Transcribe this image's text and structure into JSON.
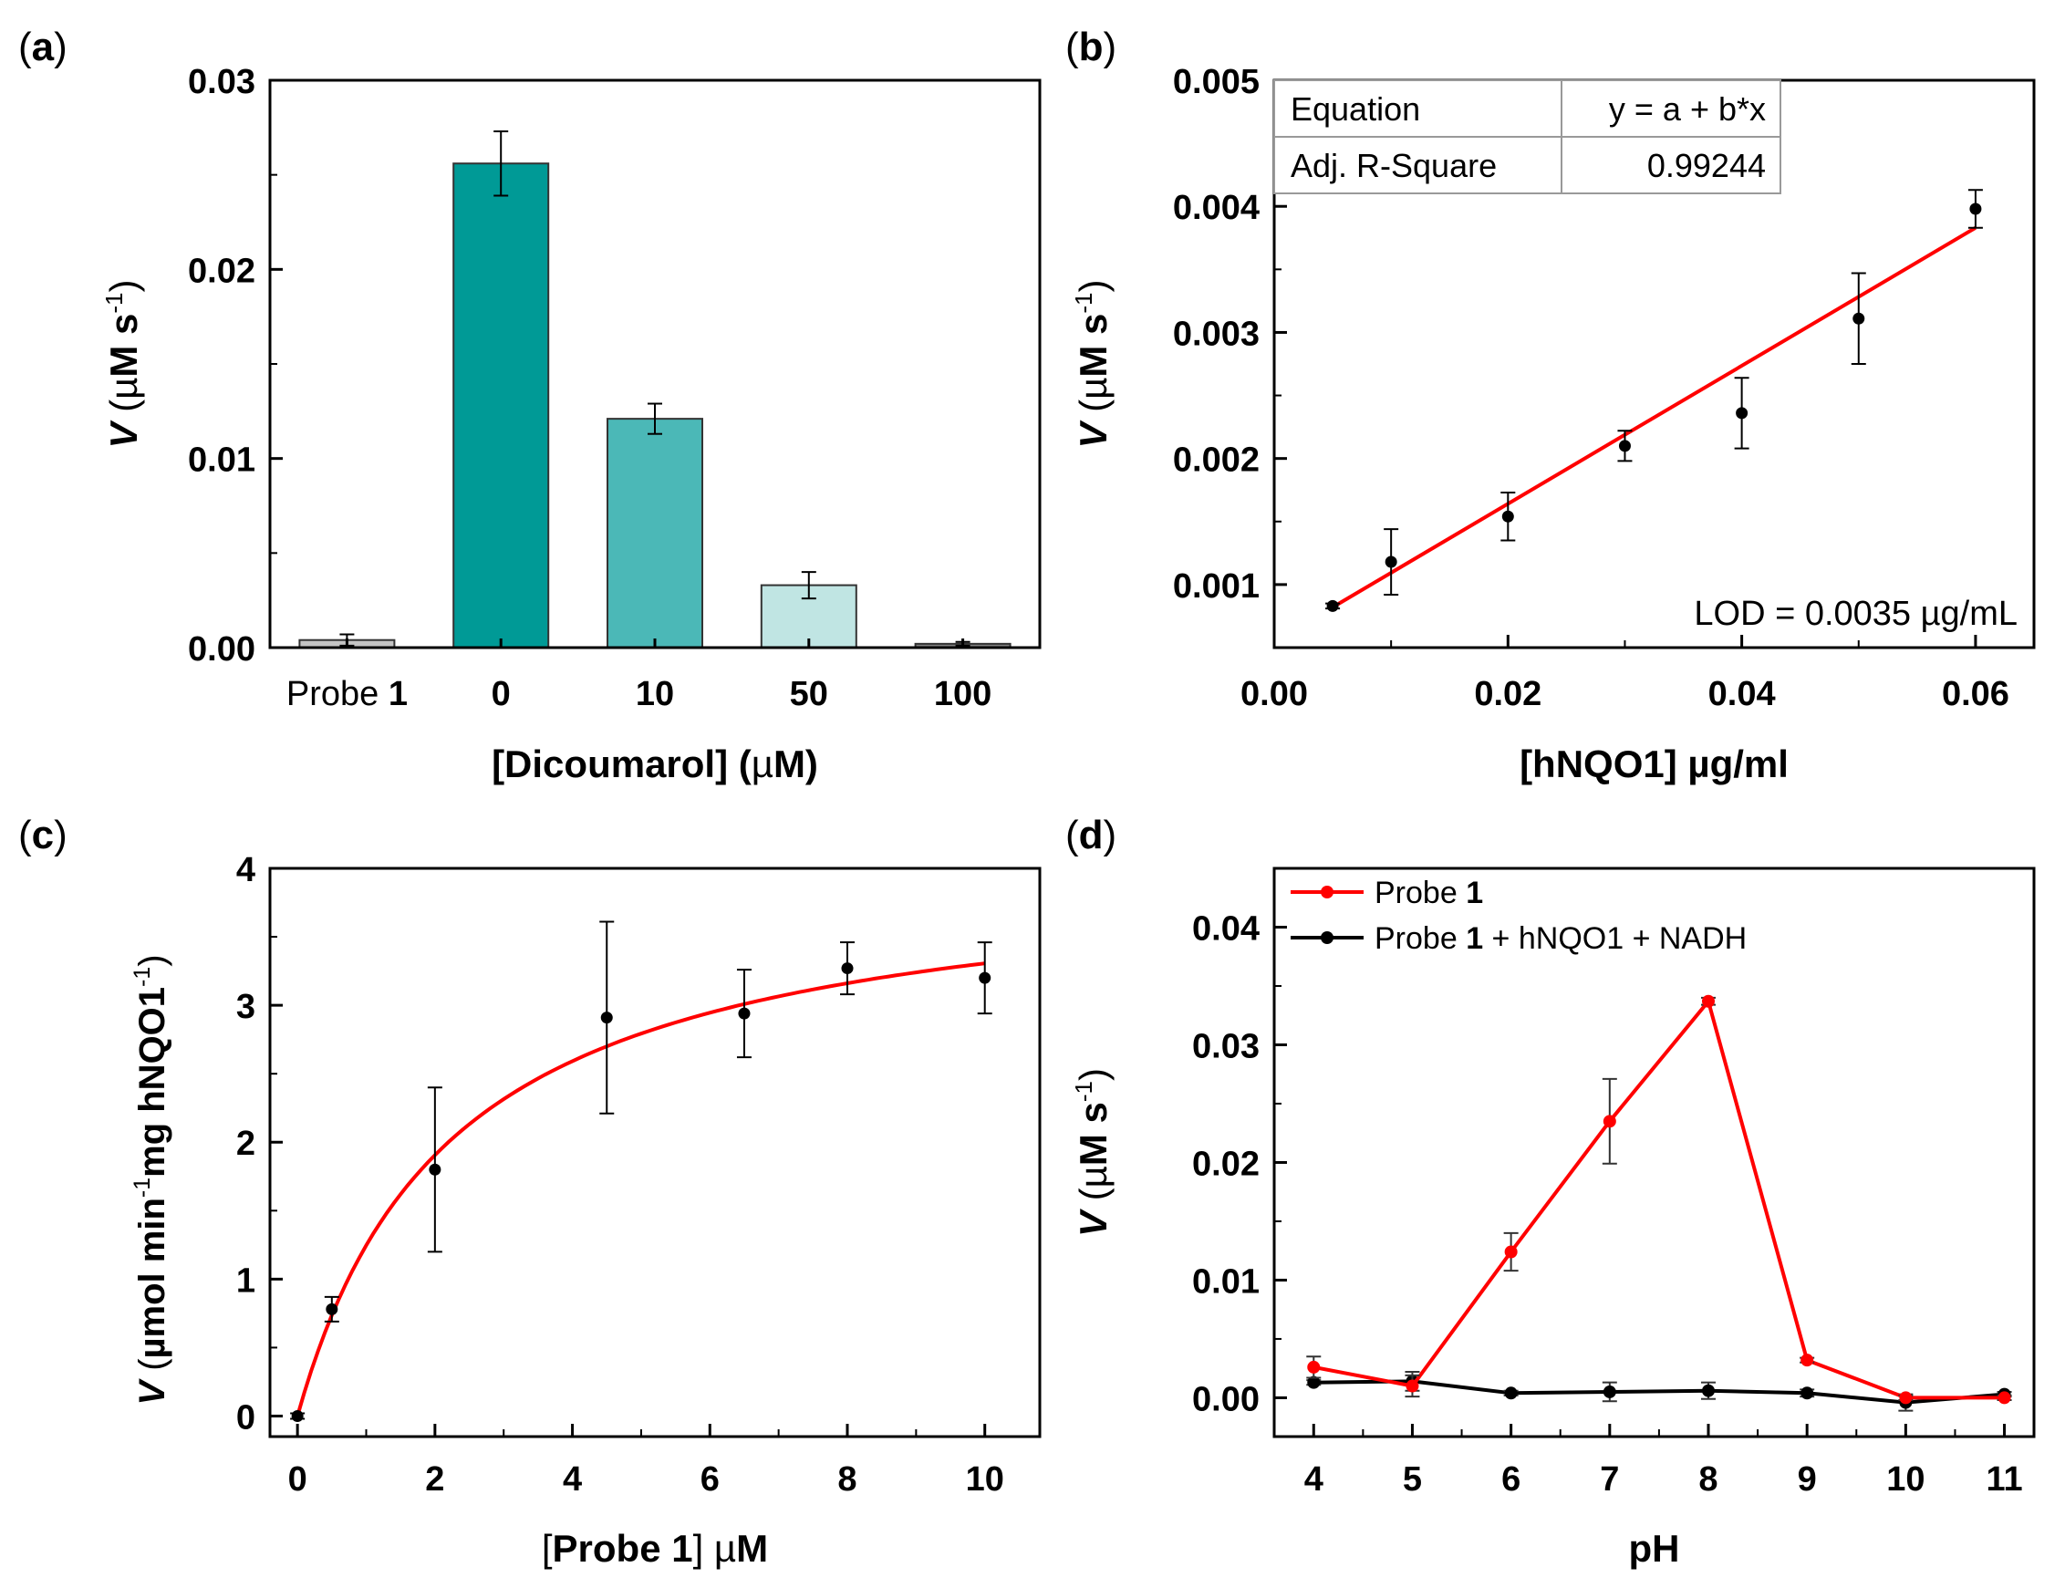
{
  "chart_data": [
    {
      "panel_label": "(a)",
      "type": "bar",
      "categories": [
        "Probe 1",
        "0",
        "10",
        "50",
        "100"
      ],
      "values": [
        0.0004,
        0.0256,
        0.0121,
        0.0033,
        0.0002
      ],
      "errors": [
        0.0003,
        0.0017,
        0.0008,
        0.0007,
        0.0001
      ],
      "bar_colors": [
        "#c4c4c4",
        "#009a96",
        "#4bb8b7",
        "#c0e5e3",
        "#7f7f7f"
      ],
      "xlabel": "[Dicoumarol] (µM)",
      "ylabel": "V (µM s-1)",
      "ylim": [
        0,
        0.03
      ],
      "yticks": [
        "0.00",
        "0.01",
        "0.02",
        "0.03"
      ]
    },
    {
      "panel_label": "(b)",
      "type": "scatter",
      "x": [
        0.005,
        0.01,
        0.02,
        0.03,
        0.04,
        0.05,
        0.06
      ],
      "y": [
        0.00083,
        0.00118,
        0.00154,
        0.0021,
        0.00236,
        0.00311,
        0.00398
      ],
      "errors": [
        2e-05,
        0.00026,
        0.00019,
        0.00012,
        0.00028,
        0.00036,
        0.00015
      ],
      "fit_line": {
        "x": [
          0.005,
          0.06
        ],
        "y": [
          0.00082,
          0.00383
        ],
        "color": "#ff0000"
      },
      "xlabel": "[hNQO1] µg/ml",
      "ylabel": "V (µM s-1)",
      "xlim": [
        0,
        0.065
      ],
      "ylim": [
        0.0005,
        0.005
      ],
      "xticks": [
        "0.00",
        "0.02",
        "0.04",
        "0.06"
      ],
      "yticks": [
        "0.001",
        "0.002",
        "0.003",
        "0.004",
        "0.005"
      ],
      "table": [
        [
          "Equation",
          "y = a + b*x"
        ],
        [
          "Adj. R-Square",
          "0.99244"
        ]
      ],
      "annotation": "LOD = 0.0035 µg/mL"
    },
    {
      "panel_label": "(c)",
      "type": "scatter",
      "x": [
        0,
        0.5,
        2,
        4.5,
        6.5,
        8,
        10
      ],
      "y": [
        0,
        0.78,
        1.8,
        2.91,
        2.94,
        3.27,
        3.2
      ],
      "errors": [
        0.02,
        0.09,
        0.6,
        0.7,
        0.32,
        0.19,
        0.26
      ],
      "fit_curve": {
        "vmax": 4.05,
        "km": 2.25,
        "color": "#ff0000"
      },
      "xlabel": "[Probe 1] µM",
      "ylabel": "V (µmol min-1mg hNQO1-1)",
      "xlim": [
        -0.4,
        10.8
      ],
      "ylim": [
        -0.15,
        4
      ],
      "xticks": [
        "0",
        "2",
        "4",
        "6",
        "8",
        "10"
      ],
      "yticks": [
        "0",
        "1",
        "2",
        "3",
        "4"
      ]
    },
    {
      "panel_label": "(d)",
      "type": "line",
      "x": [
        4,
        5,
        6,
        7,
        8,
        9,
        10,
        11
      ],
      "series": [
        {
          "name": "Probe 1",
          "color": "#ff0000",
          "values": [
            0.0026,
            0.001,
            0.0124,
            0.0235,
            0.0337,
            0.0032,
            0.0,
            0.0
          ],
          "errors": [
            0.0009,
            0.0009,
            0.0016,
            0.0036,
            0.0003,
            0.0002,
            0.0002,
            0.0002
          ]
        },
        {
          "name": "Probe 1 + hNQO1 + NADH",
          "color": "#000000",
          "values": [
            0.0013,
            0.0014,
            0.0004,
            0.0005,
            0.0006,
            0.0004,
            -0.0004,
            0.0003
          ],
          "errors": [
            0.0002,
            0.0008,
            0.0002,
            0.0008,
            0.0007,
            0.0003,
            0.0007,
            0.0002
          ]
        }
      ],
      "xlabel": "pH",
      "ylabel": "V (µM s-1)",
      "xlim": [
        3.6,
        11.3
      ],
      "ylim": [
        -0.0033,
        0.045
      ],
      "xticks": [
        "4",
        "5",
        "6",
        "7",
        "8",
        "9",
        "10",
        "11"
      ],
      "yticks": [
        "0.00",
        "0.01",
        "0.02",
        "0.03",
        "0.04"
      ],
      "legend_position": "top-left"
    }
  ]
}
